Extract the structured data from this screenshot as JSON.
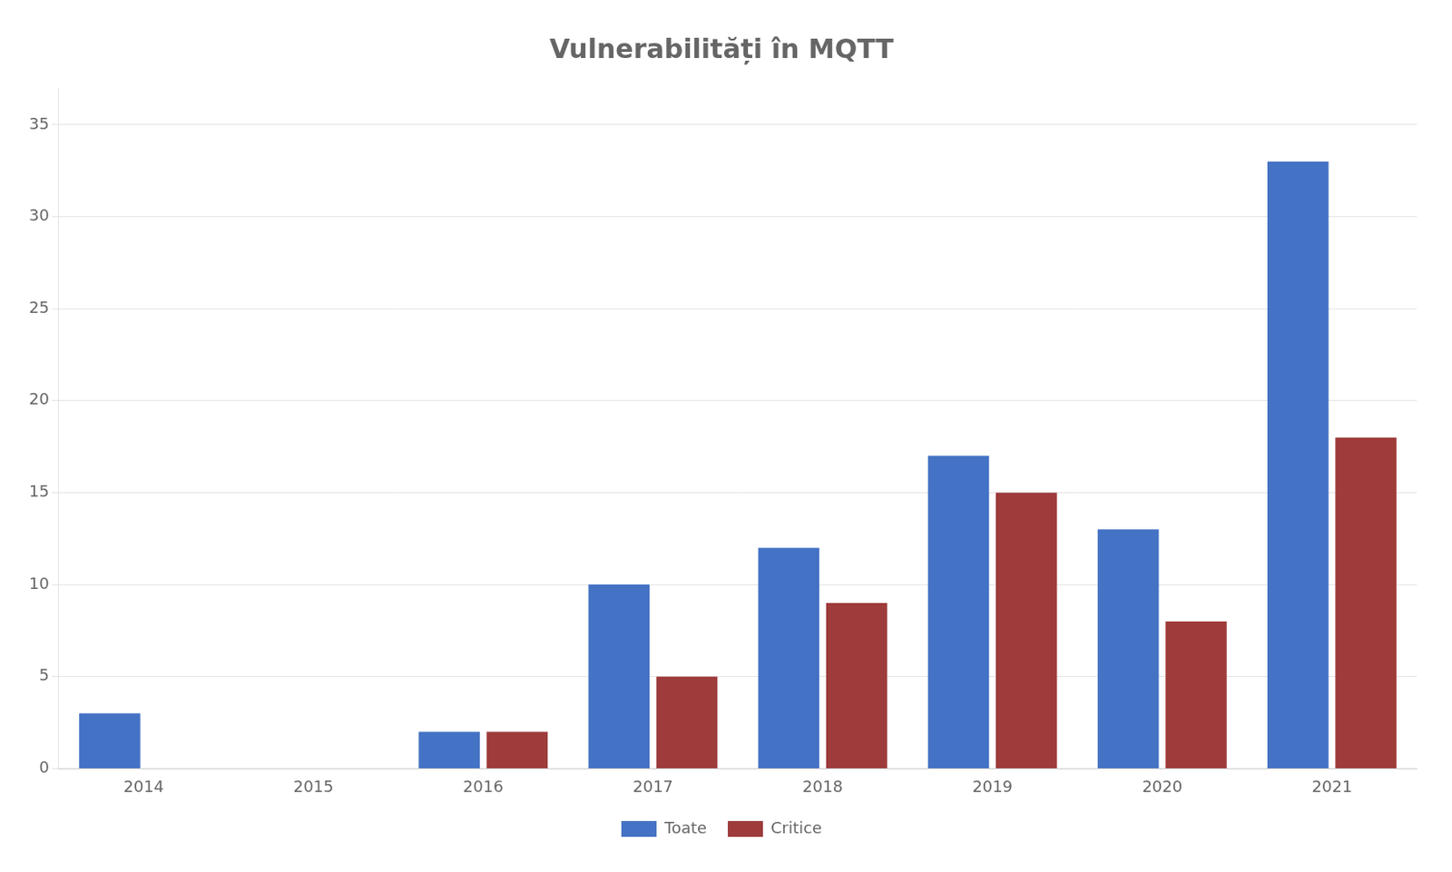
{
  "chart_data": {
    "type": "bar",
    "title": "Vulnerabilități în MQTT",
    "categories": [
      "2014",
      "2015",
      "2016",
      "2017",
      "2018",
      "2019",
      "2020",
      "2021"
    ],
    "series": [
      {
        "name": "Toate",
        "color": "#4472C4",
        "values": [
          3,
          0,
          2,
          10,
          12,
          17,
          13,
          33
        ]
      },
      {
        "name": "Critice",
        "color": "#9E3B3B",
        "values": [
          0,
          0,
          2,
          5,
          9,
          15,
          8,
          18
        ]
      }
    ],
    "ylim": [
      0,
      37
    ],
    "yticks": [
      0,
      5,
      10,
      15,
      20,
      25,
      30,
      35
    ],
    "grid": true,
    "legend": "bottom"
  }
}
